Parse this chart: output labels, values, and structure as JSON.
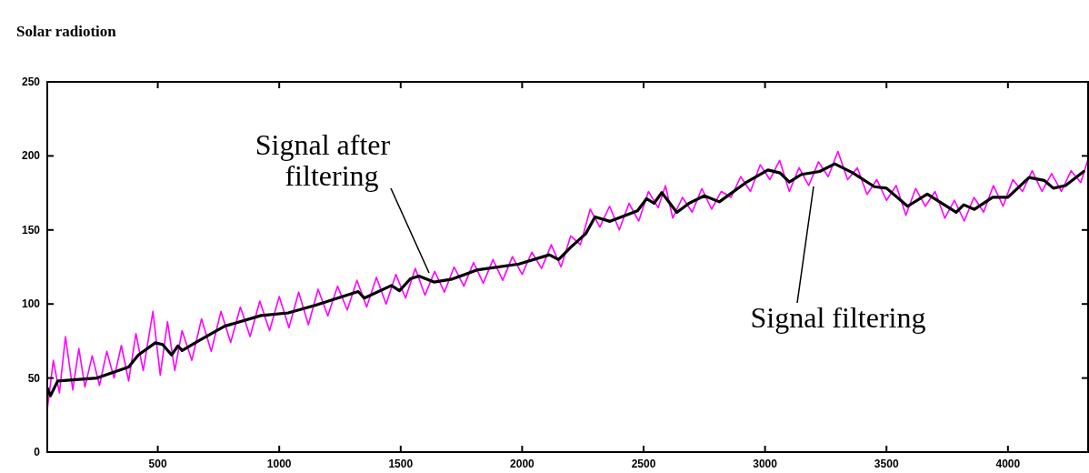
{
  "chart_data": {
    "type": "line",
    "title": "Solar radiotion",
    "xlim": [
      45,
      4330
    ],
    "xticks": [
      500,
      1000,
      1500,
      2000,
      2500,
      3000,
      3500,
      4000
    ],
    "ylim": [
      0,
      250
    ],
    "yticks": [
      0,
      50,
      100,
      150,
      200,
      250
    ],
    "grid": false,
    "annotations": [
      "Signal after filtering",
      "Signal filtering"
    ],
    "series": [
      {
        "color": "#ff00ff",
        "x": [
          46,
          70,
          95,
          120,
          150,
          175,
          200,
          230,
          260,
          290,
          320,
          350,
          380,
          410,
          440,
          480,
          510,
          540,
          570,
          600,
          640,
          680,
          720,
          760,
          800,
          840,
          880,
          920,
          960,
          1000,
          1040,
          1080,
          1120,
          1160,
          1200,
          1240,
          1280,
          1320,
          1360,
          1400,
          1440,
          1480,
          1520,
          1560,
          1600,
          1640,
          1680,
          1720,
          1760,
          1800,
          1840,
          1880,
          1920,
          1960,
          2000,
          2040,
          2080,
          2120,
          2160,
          2200,
          2240,
          2280,
          2320,
          2360,
          2400,
          2440,
          2480,
          2520,
          2560,
          2590,
          2620,
          2660,
          2700,
          2740,
          2780,
          2820,
          2860,
          2900,
          2940,
          2980,
          3020,
          3060,
          3100,
          3140,
          3180,
          3220,
          3260,
          3300,
          3340,
          3380,
          3420,
          3460,
          3500,
          3540,
          3580,
          3620,
          3660,
          3700,
          3740,
          3780,
          3820,
          3860,
          3900,
          3940,
          3980,
          4020,
          4060,
          4100,
          4140,
          4180,
          4220,
          4260,
          4300,
          4330
        ],
        "values": [
          30,
          62,
          40,
          78,
          42,
          70,
          44,
          65,
          45,
          68,
          50,
          72,
          48,
          80,
          55,
          95,
          52,
          88,
          55,
          82,
          62,
          90,
          68,
          95,
          74,
          98,
          78,
          102,
          82,
          105,
          84,
          108,
          86,
          110,
          92,
          112,
          96,
          116,
          98,
          118,
          100,
          120,
          104,
          124,
          106,
          122,
          108,
          125,
          112,
          128,
          114,
          130,
          116,
          132,
          120,
          135,
          124,
          140,
          125,
          146,
          140,
          164,
          152,
          166,
          150,
          168,
          156,
          176,
          165,
          180,
          158,
          172,
          162,
          178,
          164,
          176,
          172,
          186,
          176,
          194,
          184,
          197,
          176,
          192,
          180,
          196,
          186,
          203,
          184,
          192,
          174,
          184,
          170,
          180,
          160,
          178,
          166,
          176,
          158,
          170,
          156,
          172,
          162,
          180,
          166,
          184,
          176,
          190,
          176,
          188,
          176,
          190,
          182,
          198
        ]
      },
      {
        "color": "#000000",
        "x": [
          46,
          58,
          88,
          250,
          380,
          420,
          490,
          520,
          557,
          583,
          600,
          675,
          775,
          925,
          1037,
          1150,
          1325,
          1350,
          1462,
          1495,
          1540,
          1575,
          1637,
          1712,
          1812,
          1987,
          2112,
          2150,
          2200,
          2262,
          2300,
          2362,
          2475,
          2512,
          2543,
          2575,
          2637,
          2687,
          2750,
          2812,
          2925,
          3012,
          3062,
          3100,
          3150,
          3225,
          3287,
          3362,
          3450,
          3500,
          3587,
          3668,
          3787,
          3818,
          3862,
          3937,
          4000,
          4087,
          4150,
          4187,
          4237,
          4312
        ],
        "values": [
          43,
          38,
          48,
          50,
          57.5,
          65.6,
          73.8,
          72.6,
          65.6,
          71.7,
          68.6,
          75.8,
          85,
          92.2,
          94,
          99.2,
          108.4,
          104,
          112.5,
          109,
          117,
          118.9,
          114.8,
          116.8,
          122.9,
          127,
          133.2,
          130,
          138.3,
          147.5,
          158.8,
          155.8,
          162.9,
          171.1,
          168,
          175.2,
          161.9,
          168,
          173.1,
          169,
          182.4,
          190.5,
          188.5,
          182.4,
          187.5,
          189.5,
          194.6,
          188.5,
          179.2,
          178.2,
          166,
          174.2,
          161.9,
          167,
          163.9,
          172.1,
          172.1,
          185.4,
          183.4,
          178.2,
          180,
          189.5
        ]
      }
    ]
  }
}
